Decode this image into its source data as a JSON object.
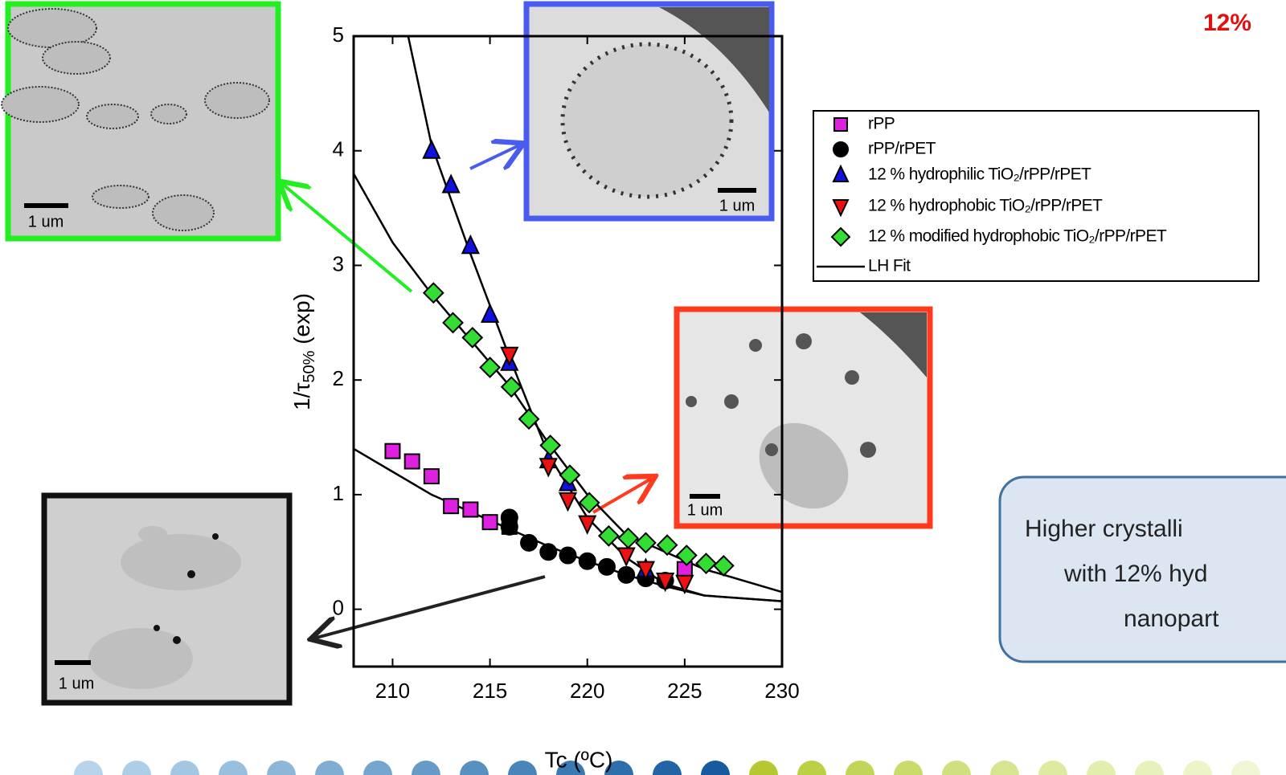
{
  "chart_data": {
    "type": "scatter",
    "x_label": "Tc (ºC)",
    "y_label": {
      "prefix": "1/τ",
      "sub": "50%",
      "suffix": " (exp)"
    },
    "xlim": [
      208,
      230
    ],
    "xticks": [
      210,
      215,
      220,
      225,
      230
    ],
    "ylim": [
      -0.5,
      5
    ],
    "yticks": [
      0,
      1,
      2,
      3,
      4,
      5
    ],
    "series": [
      {
        "name": "rPP",
        "color": "#e020e0",
        "marker": "square",
        "x": [
          210,
          211,
          212,
          213,
          214,
          215,
          216,
          225
        ],
        "values": [
          1.38,
          1.29,
          1.16,
          0.9,
          0.87,
          0.76,
          0.72,
          0.35
        ]
      },
      {
        "name": "rPP/rPET",
        "color": "#000000",
        "marker": "circle",
        "x": [
          216,
          216,
          217,
          218,
          219,
          220,
          221,
          222,
          223,
          224
        ],
        "values": [
          0.8,
          0.72,
          0.58,
          0.5,
          0.47,
          0.42,
          0.37,
          0.3,
          0.27,
          0.25
        ]
      },
      {
        "name": "12 % hydrophilic TiO₂/rPP/rPET",
        "color": "#1010e0",
        "marker": "triangle-up",
        "x": [
          212,
          213,
          214,
          215,
          216,
          218,
          219,
          223
        ],
        "values": [
          4.0,
          3.7,
          3.17,
          2.57,
          2.15,
          1.3,
          1.1,
          0.35
        ]
      },
      {
        "name": "12 % hydrophobic TiO₂/rPP/rPET",
        "color": "#ee1111",
        "marker": "triangle-down",
        "x": [
          216,
          218,
          219,
          220,
          222,
          223,
          224,
          225
        ],
        "values": [
          2.22,
          1.25,
          0.95,
          0.75,
          0.47,
          0.35,
          0.25,
          0.23
        ]
      },
      {
        "name": "12 % modified hydrophobic TiO₂/rPP/rPET",
        "color": "#33dd33",
        "marker": "diamond",
        "x": [
          212.1,
          213.1,
          214.1,
          215,
          216.1,
          217,
          218.1,
          219.1,
          220.1,
          221.1,
          222.1,
          223,
          224.1,
          225.1,
          226.1,
          227
        ],
        "values": [
          2.76,
          2.5,
          2.37,
          2.11,
          1.94,
          1.66,
          1.43,
          1.17,
          0.93,
          0.64,
          0.62,
          0.58,
          0.56,
          0.47,
          0.4,
          0.38
        ]
      }
    ],
    "fit": {
      "name": "LH Fit",
      "color": "#000000",
      "curves": [
        {
          "x": [
            210.8,
            212,
            214,
            216,
            218,
            220,
            222,
            224,
            226,
            230
          ],
          "values": [
            5,
            4.05,
            3.1,
            2.2,
            1.35,
            0.8,
            0.45,
            0.22,
            0.12,
            0.07
          ]
        },
        {
          "x": [
            208,
            210,
            212,
            214,
            216,
            218,
            220,
            222,
            224,
            226,
            230
          ],
          "values": [
            3.8,
            3.2,
            2.75,
            2.35,
            1.95,
            1.45,
            1.0,
            0.65,
            0.5,
            0.35,
            0.15
          ]
        },
        {
          "x": [
            208,
            210,
            212,
            214,
            216,
            218,
            220,
            222,
            224,
            226,
            230
          ],
          "values": [
            1.4,
            1.2,
            1.0,
            0.85,
            0.7,
            0.55,
            0.42,
            0.3,
            0.2,
            0.12,
            0.07
          ]
        }
      ]
    }
  },
  "slide": {
    "headline": "12%",
    "callout": [
      "Higher crystalli",
      "with 12% hyd",
      "nanopart"
    ],
    "scale_labels": [
      "1 um",
      "1 um",
      "1 um",
      "1 um"
    ]
  }
}
